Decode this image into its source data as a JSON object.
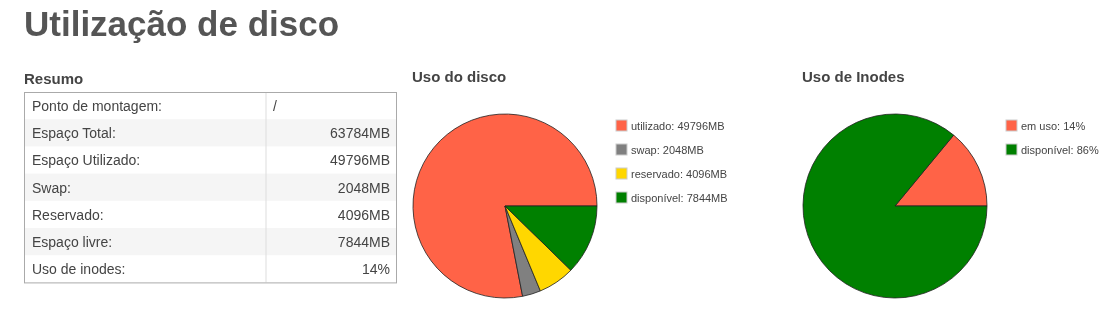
{
  "chart_data": [
    {
      "type": "other",
      "title": "Resumo",
      "annotations": [
        "Utilização de disco",
        "Ponto de montagem:",
        "/",
        "Espaço Total:",
        "63784MB",
        "Espaço Utilizado:",
        "49796MB",
        "Swap:",
        "2048MB",
        "Reservado:",
        "4096MB",
        "Espaço livre:",
        "7844MB",
        "Uso de inodes:",
        "14%"
      ]
    },
    {
      "type": "pie",
      "title": "Uso do disco",
      "legend": "right",
      "categories": [
        "utilizado: 49796MB",
        "swap: 2048MB",
        "reservado: 4096MB",
        "disponível: 7844MB"
      ],
      "values": [
        49796,
        2048,
        4096,
        7844
      ],
      "colors": [
        "#ff6347",
        "#808080",
        "#ffd700",
        "#008000"
      ]
    },
    {
      "type": "pie",
      "title": "Uso de Inodes",
      "legend": "right",
      "categories": [
        "em uso: 14%",
        "disponível: 86%"
      ],
      "values": [
        14,
        86
      ],
      "colors": [
        "#ff6347",
        "#008000"
      ]
    }
  ]
}
